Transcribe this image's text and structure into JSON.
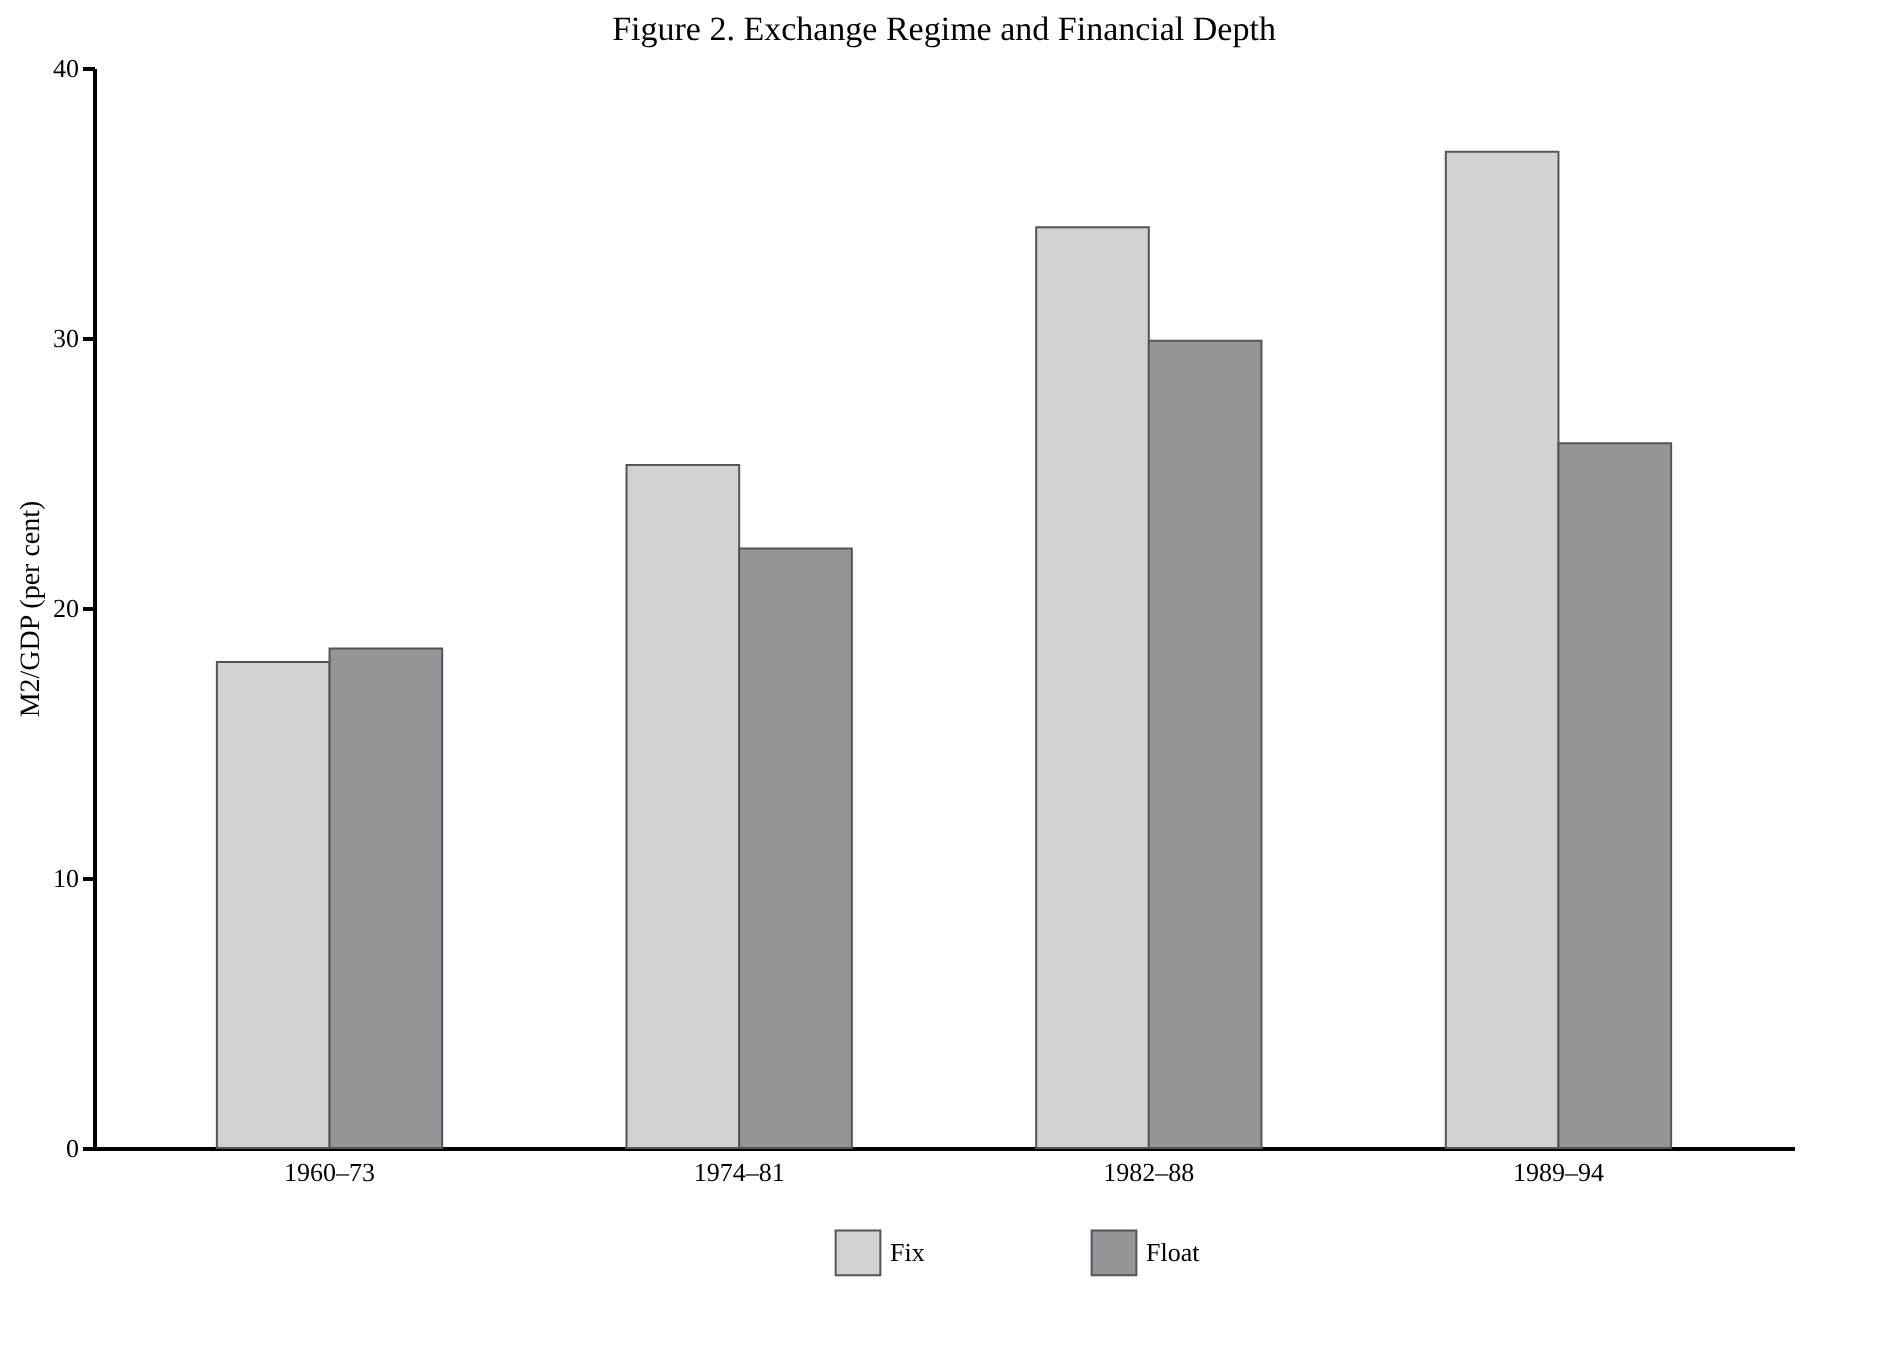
{
  "chart_data": {
    "type": "bar",
    "title": "Figure 2. Exchange Regime and Financial Depth",
    "ylabel": "M2/GDP (per cent)",
    "categories": [
      "1960–73",
      "1974–81",
      "1982–88",
      "1989–94"
    ],
    "series": [
      {
        "name": "Fix",
        "color": "#d1d2d4",
        "values": [
          18.0,
          25.3,
          34.1,
          36.9
        ]
      },
      {
        "name": "Float",
        "color": "#939598",
        "values": [
          18.5,
          22.2,
          29.9,
          26.1
        ]
      }
    ],
    "ylim": [
      0,
      40
    ],
    "yticks": [
      0,
      10,
      20,
      30,
      40
    ],
    "grid": false,
    "legend": "bottom"
  }
}
